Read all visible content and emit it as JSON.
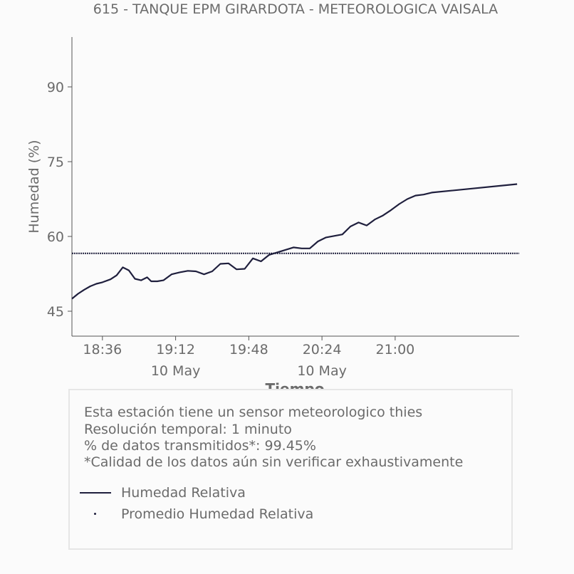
{
  "chart_data": {
    "type": "line",
    "title": "615 - TANQUE EPM GIRARDOTA - METEOROLOGICA VAISALA",
    "xlabel": "Tiempo",
    "ylabel": "Humedad (%)",
    "ylim": [
      40,
      100
    ],
    "yticks": [
      "45",
      "60",
      "75",
      "90"
    ],
    "xlim": [
      "18:21",
      "22:01"
    ],
    "xticks": [
      {
        "label": "18:36",
        "sublabel": ""
      },
      {
        "label": "19:12",
        "sublabel": "10 May"
      },
      {
        "label": "19:48",
        "sublabel": ""
      },
      {
        "label": "20:24",
        "sublabel": "10 May"
      },
      {
        "label": "21:00",
        "sublabel": ""
      }
    ],
    "grid": false,
    "series": [
      {
        "name": "Humedad Relativa",
        "style": "solid",
        "color": "#1f1f3d",
        "x": [
          "18:21",
          "18:24",
          "18:27",
          "18:30",
          "18:33",
          "18:36",
          "18:40",
          "18:43",
          "18:46",
          "18:49",
          "18:52",
          "18:55",
          "18:58",
          "19:00",
          "19:03",
          "19:06",
          "19:10",
          "19:14",
          "19:18",
          "19:22",
          "19:26",
          "19:30",
          "19:34",
          "19:38",
          "19:42",
          "19:46",
          "19:50",
          "19:54",
          "19:58",
          "20:02",
          "20:06",
          "20:10",
          "20:14",
          "20:18",
          "20:22",
          "20:26",
          "20:30",
          "20:34",
          "20:38",
          "20:42",
          "20:46",
          "20:50",
          "20:54",
          "20:58",
          "21:02",
          "21:06",
          "21:10",
          "21:14",
          "21:18",
          "22:00"
        ],
        "values": [
          47.5,
          48.5,
          49.3,
          50.0,
          50.5,
          50.8,
          51.4,
          52.2,
          53.8,
          53.2,
          51.5,
          51.2,
          51.8,
          51.0,
          51.0,
          51.2,
          52.4,
          52.8,
          53.1,
          53.0,
          52.4,
          53.0,
          54.5,
          54.6,
          53.4,
          53.5,
          55.6,
          55.0,
          56.3,
          56.8,
          57.3,
          57.8,
          57.6,
          57.6,
          59.0,
          59.8,
          60.1,
          60.4,
          62.0,
          62.8,
          62.2,
          63.4,
          64.2,
          65.3,
          66.5,
          67.5,
          68.2,
          68.4,
          68.8,
          70.5
        ]
      },
      {
        "name": "Promedio Humedad Relativa",
        "style": "dotted",
        "color": "#1f1f3d",
        "x": [
          "18:21",
          "22:01"
        ],
        "values": [
          56.6,
          56.6
        ]
      }
    ],
    "legend": "bottom"
  },
  "info": {
    "line1": "Esta estación tiene un sensor meteorologico thies",
    "line2": "Resolución temporal: 1 minuto",
    "line3": "% de datos transmitidos*: 99.45%",
    "line4": "*Calidad de los datos aún sin verificar exhaustivamente"
  },
  "legend": {
    "item1": "Humedad Relativa",
    "item2": "Promedio Humedad Relativa"
  },
  "colors": {
    "series": "#1f1f3d",
    "text": "#6b6b6b",
    "box_border": "#e6e6e6"
  }
}
